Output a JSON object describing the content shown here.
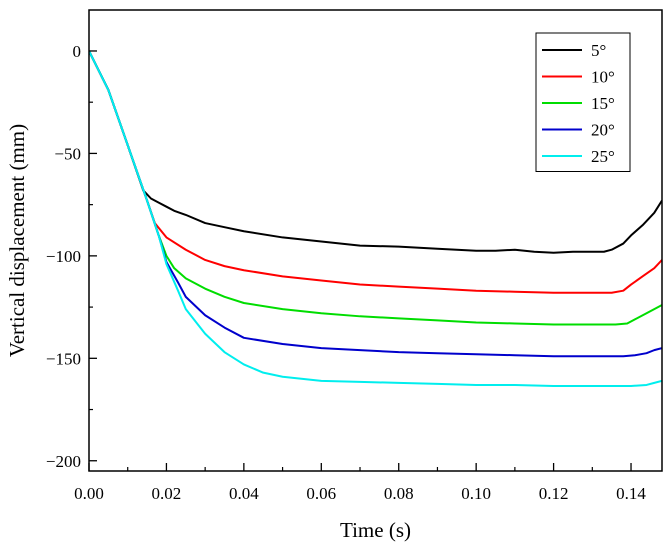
{
  "chart_data": {
    "type": "line",
    "title": "",
    "xlabel": "Time (s)",
    "ylabel": "Vertical displacement (mm)",
    "xlim": [
      0.0,
      0.148
    ],
    "ylim": [
      -205,
      20
    ],
    "xticks": [
      0.0,
      0.02,
      0.04,
      0.06,
      0.08,
      0.1,
      0.12,
      0.14
    ],
    "xtick_labels": [
      "0.00",
      "0.02",
      "0.04",
      "0.06",
      "0.08",
      "0.10",
      "0.12",
      "0.14"
    ],
    "yticks": [
      0,
      -50,
      -100,
      -150,
      -200
    ],
    "ytick_labels": [
      "0",
      "−50",
      "−100",
      "−150",
      "−200"
    ],
    "grid": false,
    "legend_position": "top-right",
    "series": [
      {
        "name": "5°",
        "color": "#000000",
        "x": [
          0.0,
          0.005,
          0.01,
          0.014,
          0.016,
          0.018,
          0.02,
          0.022,
          0.025,
          0.03,
          0.035,
          0.04,
          0.05,
          0.06,
          0.07,
          0.08,
          0.09,
          0.1,
          0.105,
          0.11,
          0.115,
          0.12,
          0.125,
          0.13,
          0.133,
          0.135,
          0.138,
          0.14,
          0.143,
          0.146,
          0.148
        ],
        "y": [
          0,
          -19,
          -46,
          -68,
          -72,
          -74,
          -76,
          -78,
          -80,
          -84,
          -86,
          -88,
          -91,
          -93,
          -95,
          -95.5,
          -96.5,
          -97.5,
          -97.5,
          -97,
          -98,
          -98.5,
          -98,
          -98,
          -98,
          -97,
          -94,
          -90,
          -85,
          -79,
          -73
        ]
      },
      {
        "name": "10°",
        "color": "#ff0000",
        "x": [
          0.0,
          0.005,
          0.01,
          0.015,
          0.017,
          0.02,
          0.025,
          0.03,
          0.035,
          0.04,
          0.05,
          0.06,
          0.07,
          0.08,
          0.09,
          0.1,
          0.11,
          0.12,
          0.13,
          0.135,
          0.138,
          0.14,
          0.143,
          0.146,
          0.148
        ],
        "y": [
          0,
          -19,
          -46,
          -73,
          -84,
          -91,
          -97,
          -102,
          -105,
          -107,
          -110,
          -112,
          -114,
          -115,
          -116,
          -117,
          -117.5,
          -118,
          -118,
          -118,
          -117,
          -114,
          -110,
          -106,
          -102
        ]
      },
      {
        "name": "15°",
        "color": "#00dd00",
        "x": [
          0.0,
          0.005,
          0.01,
          0.015,
          0.018,
          0.02,
          0.022,
          0.025,
          0.03,
          0.035,
          0.04,
          0.05,
          0.06,
          0.07,
          0.08,
          0.09,
          0.1,
          0.11,
          0.12,
          0.13,
          0.136,
          0.139,
          0.141,
          0.144,
          0.146,
          0.148
        ],
        "y": [
          0,
          -19,
          -46,
          -73,
          -90,
          -100,
          -106,
          -111,
          -116,
          -120,
          -123,
          -126,
          -128,
          -129.5,
          -130.5,
          -131.5,
          -132.5,
          -133,
          -133.5,
          -133.5,
          -133.5,
          -133,
          -131,
          -128,
          -126,
          -124
        ]
      },
      {
        "name": "20°",
        "color": "#0000cc",
        "x": [
          0.0,
          0.005,
          0.01,
          0.015,
          0.018,
          0.02,
          0.023,
          0.025,
          0.03,
          0.035,
          0.04,
          0.05,
          0.06,
          0.07,
          0.08,
          0.09,
          0.1,
          0.11,
          0.12,
          0.13,
          0.138,
          0.141,
          0.144,
          0.146,
          0.148
        ],
        "y": [
          0,
          -19,
          -46,
          -73,
          -90,
          -103,
          -113,
          -120,
          -129,
          -135,
          -140,
          -143,
          -145,
          -146,
          -147,
          -147.5,
          -148,
          -148.5,
          -149,
          -149,
          -149,
          -148.5,
          -147.5,
          -146,
          -145
        ]
      },
      {
        "name": "25°",
        "color": "#00eeee",
        "x": [
          0.0,
          0.005,
          0.01,
          0.015,
          0.018,
          0.02,
          0.023,
          0.025,
          0.03,
          0.035,
          0.04,
          0.045,
          0.05,
          0.06,
          0.07,
          0.08,
          0.09,
          0.1,
          0.11,
          0.12,
          0.13,
          0.14,
          0.144,
          0.146,
          0.148
        ],
        "y": [
          0,
          -19,
          -46,
          -73,
          -90,
          -104,
          -117,
          -126,
          -138,
          -147,
          -153,
          -157,
          -159,
          -161,
          -161.5,
          -162,
          -162.5,
          -163,
          -163,
          -163.5,
          -163.5,
          -163.5,
          -163,
          -162,
          -161
        ]
      }
    ]
  }
}
